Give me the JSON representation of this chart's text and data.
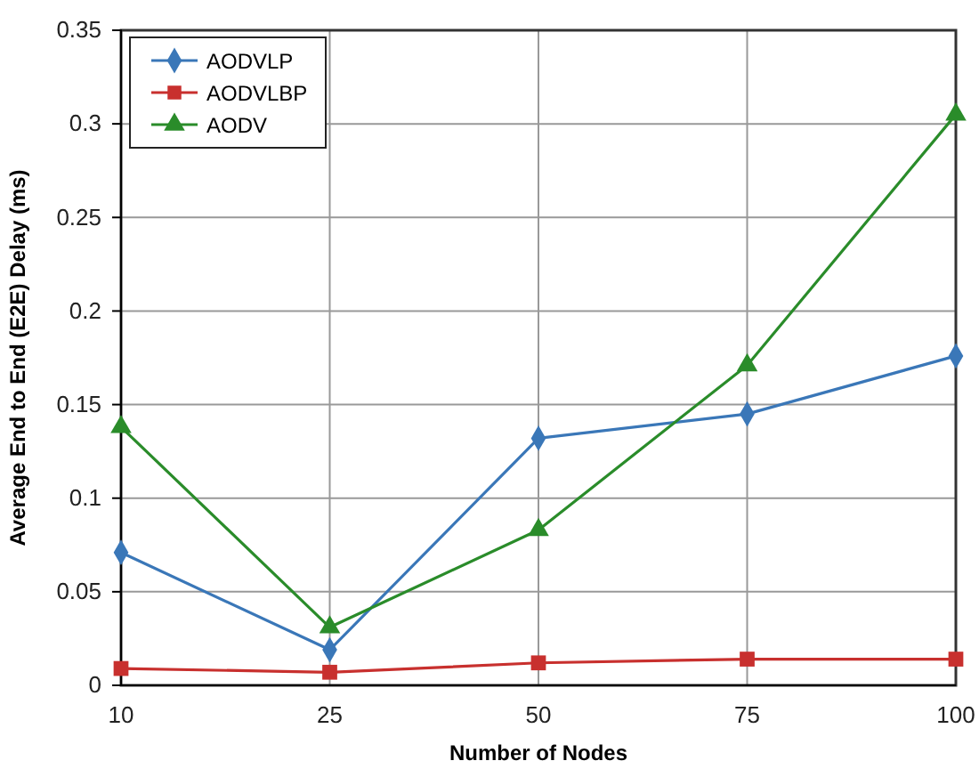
{
  "chart_data": {
    "type": "line",
    "xlabel": "Number of Nodes",
    "ylabel": "Average End to End (E2E) Delay (ms)",
    "categories": [
      "10",
      "25",
      "50",
      "75",
      "100"
    ],
    "series": [
      {
        "name": "AODVLP",
        "color": "#3a77b8",
        "marker": "diamond",
        "values": [
          0.071,
          0.019,
          0.132,
          0.145,
          0.176
        ]
      },
      {
        "name": "AODVLBP",
        "color": "#c8302e",
        "marker": "square",
        "values": [
          0.009,
          0.007,
          0.012,
          0.014,
          0.014
        ]
      },
      {
        "name": "AODV",
        "color": "#2a8c2a",
        "marker": "triangle",
        "values": [
          0.138,
          0.031,
          0.083,
          0.171,
          0.305
        ]
      }
    ],
    "ylim": [
      0,
      0.35
    ],
    "yticks": [
      0,
      0.05,
      0.1,
      0.15,
      0.2,
      0.25,
      0.3,
      0.35
    ],
    "grid": true,
    "legend": "top left",
    "line_style": "solid"
  }
}
